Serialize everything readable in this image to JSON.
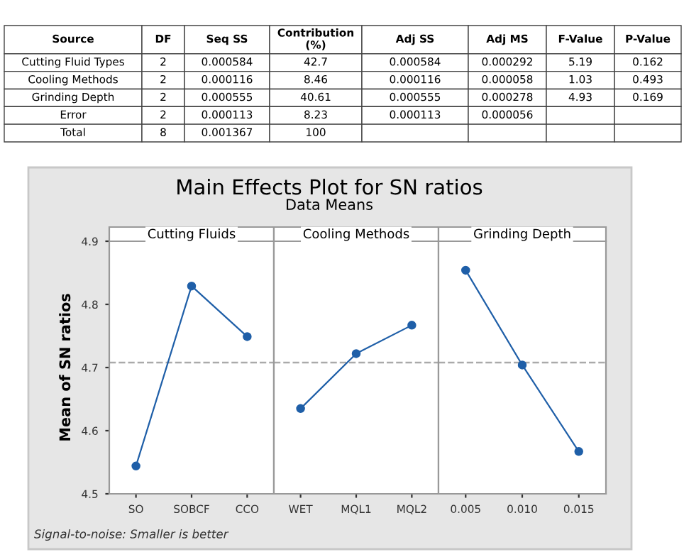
{
  "chart_data": [
    {
      "type": "other",
      "annotations": [
        "Source",
        "DF",
        "Seq SS",
        "Contribution\n(%)",
        "Adj SS",
        "Adj MS",
        "F-Value",
        "P-Value",
        "Cutting Fluid Types",
        "2",
        "0.000584",
        "42.7",
        "0.000584",
        "0.000292",
        "5.19",
        "0.162",
        "Cooling Methods",
        "2",
        "0.000116",
        "8.46",
        "0.000116",
        "0.000058",
        "1.03",
        "0.493",
        "Grinding Depth",
        "2",
        "0.000555",
        "40.61",
        "0.000555",
        "0.000278",
        "4.93",
        "0.169",
        "Error",
        "2",
        "0.000113",
        "8.23",
        "0.000113",
        "0.000056",
        null,
        null,
        "Total",
        "8",
        "0.001367",
        "100",
        null,
        null,
        null,
        null
      ]
    },
    {
      "type": "other",
      "title": "Main Effects Plot for SN ratios",
      "subtitle": "Data Means",
      "annotations": [
        "Signal-to-noise: Smaller is better"
      ]
    },
    {
      "type": "line",
      "title": "Cutting Fluids",
      "ylabel": "Mean of SN ratios",
      "categories": [
        "SO",
        "SOBCF",
        "CCO"
      ],
      "series": [
        {
          "color": "#1f5fa8",
          "values": [
            4.544,
            4.829,
            4.749
          ]
        }
      ],
      "ylim": [
        4.5,
        4.9
      ],
      "yticks": [
        4.5,
        4.6,
        4.7,
        4.8,
        4.9
      ],
      "marker": "circle",
      "line_style": "solid",
      "grid": false,
      "ref_lines": [
        {
          "axis": "y",
          "value": 4.708,
          "color": "#aaaaaa",
          "line_style": "dashed"
        }
      ]
    },
    {
      "type": "line",
      "title": "Cooling Methods",
      "categories": [
        "WET",
        "MQL1",
        "MQL2"
      ],
      "series": [
        {
          "color": "#1f5fa8",
          "values": [
            4.635,
            4.722,
            4.767
          ]
        }
      ],
      "ylim": [
        4.5,
        4.9
      ],
      "yticks": [
        4.5,
        4.6,
        4.7,
        4.8,
        4.9
      ],
      "tick_labels": "x",
      "marker": "circle",
      "line_style": "solid",
      "grid": false,
      "ref_lines": [
        {
          "axis": "y",
          "value": 4.708,
          "color": "#aaaaaa",
          "line_style": "dashed"
        }
      ]
    },
    {
      "type": "line",
      "title": "Grinding Depth",
      "categories": [
        "0.005",
        "0.010",
        "0.015"
      ],
      "series": [
        {
          "color": "#1f5fa8",
          "values": [
            4.854,
            4.704,
            4.567
          ]
        }
      ],
      "ylim": [
        4.5,
        4.9
      ],
      "yticks": [
        4.5,
        4.6,
        4.7,
        4.8,
        4.9
      ],
      "tick_labels": "x",
      "marker": "circle",
      "line_style": "solid",
      "grid": false,
      "ref_lines": [
        {
          "axis": "y",
          "value": 4.708,
          "color": "#aaaaaa",
          "line_style": "dashed"
        }
      ]
    }
  ]
}
